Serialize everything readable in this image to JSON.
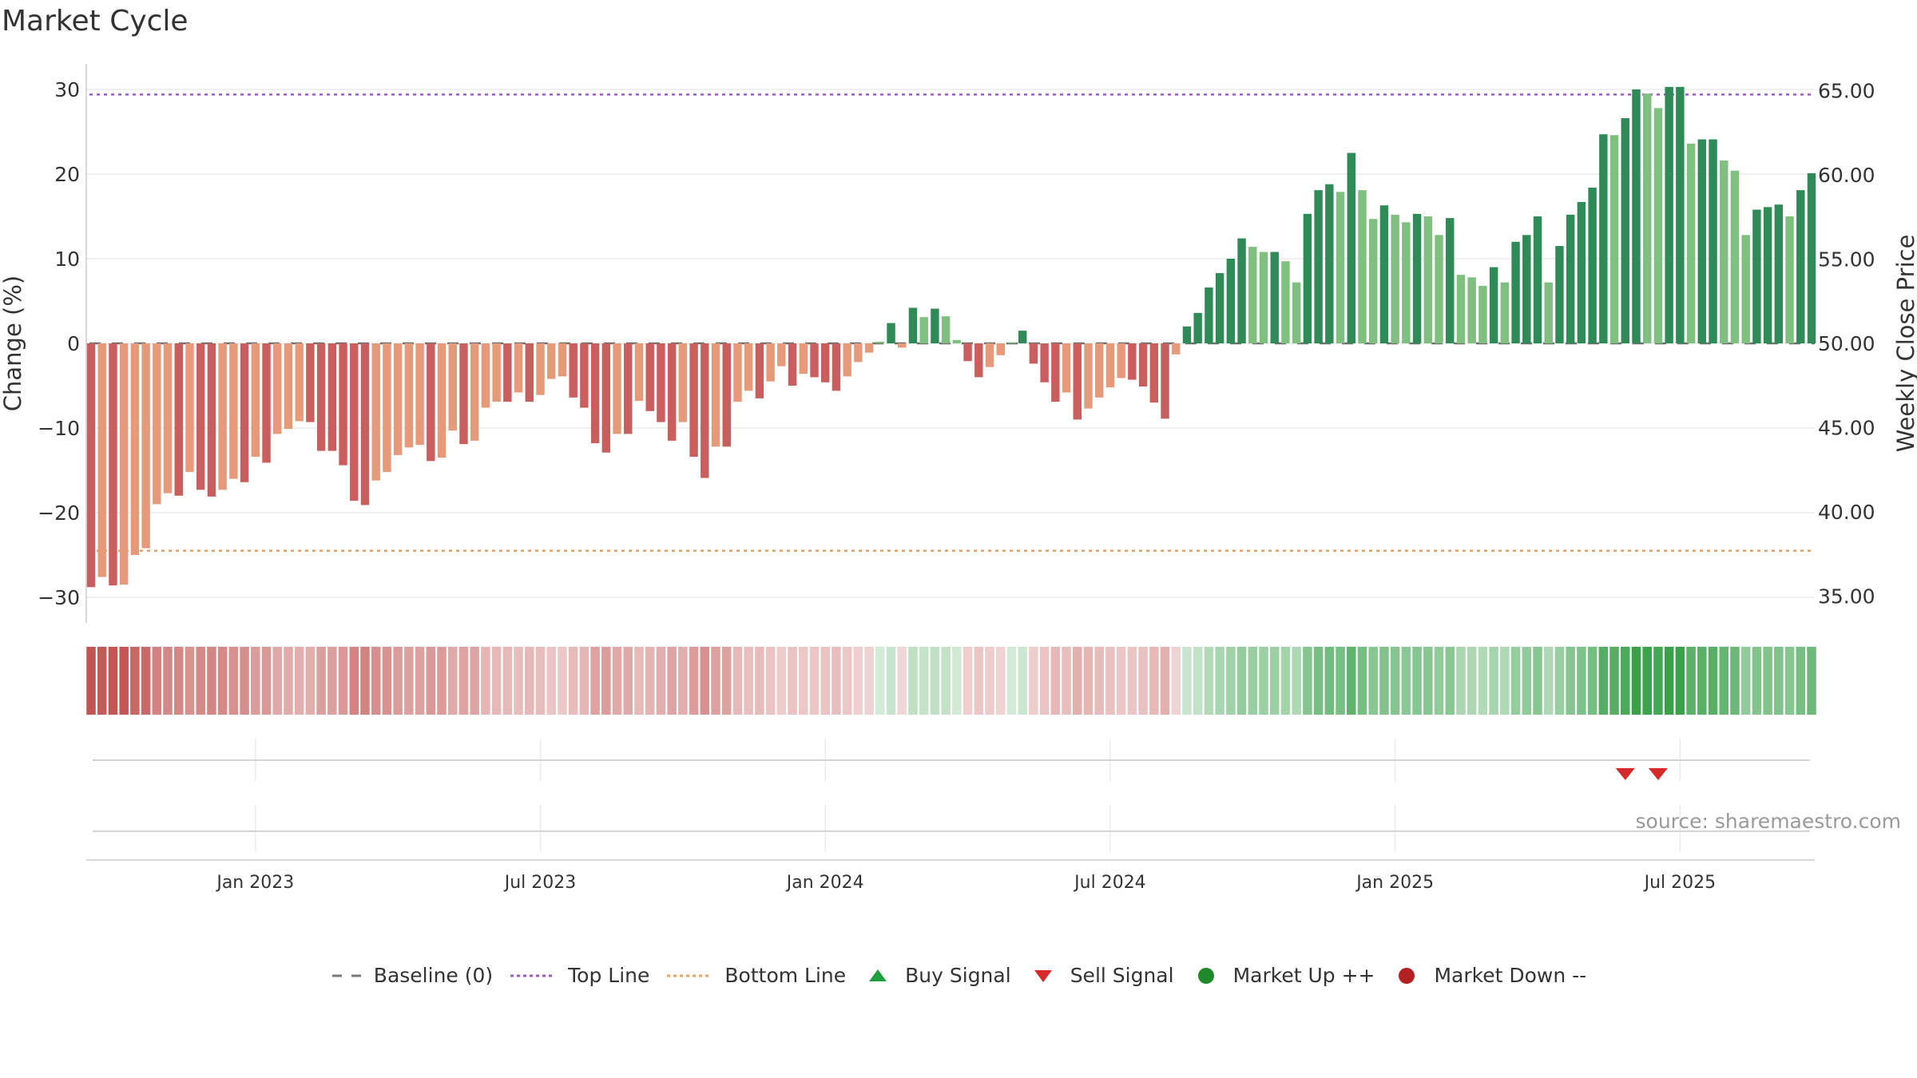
{
  "title": "Market Cycle",
  "source": "source: sharemaestro.com",
  "legend": [
    {
      "label": "Baseline (0)",
      "symbol": "dash",
      "color": "#777777"
    },
    {
      "label": "Top Line",
      "symbol": "dotted",
      "color": "#9b59d0"
    },
    {
      "label": "Bottom Line",
      "symbol": "dotted",
      "color": "#e8a060"
    },
    {
      "label": "Buy Signal",
      "symbol": "triangle-up",
      "color": "#1e9e3e"
    },
    {
      "label": "Sell Signal",
      "symbol": "triangle-down",
      "color": "#d42a2a"
    },
    {
      "label": "Market Up ++",
      "symbol": "circle",
      "color": "#1f8a2a"
    },
    {
      "label": "Market Down --",
      "symbol": "circle",
      "color": "#b22222"
    }
  ],
  "colors": {
    "neg_strong": "#c95e5e",
    "neg_light": "#e69a7a",
    "pos_strong": "#2e8b57",
    "pos_light": "#7fbf7f",
    "top_line": "#9b59d0",
    "bottom_line": "#e8a060",
    "sell_signal": "#d42a2a",
    "heat_neg": "#c0504d",
    "heat_pos": "#3aa14a"
  },
  "chart_data": {
    "type": "bar",
    "ylabel": "Change (%)",
    "y2label": "Weekly Close Price",
    "ylim": [
      -33,
      33
    ],
    "y_ticks": [
      30,
      20,
      10,
      0,
      -10,
      -20,
      -30
    ],
    "y_tick_labels": [
      "30",
      "20",
      "10",
      "0",
      "−10",
      "−20",
      "−30"
    ],
    "y2lim": [
      32.6,
      67.4
    ],
    "y2_ticks": [
      65,
      60,
      55,
      50,
      45,
      40,
      35
    ],
    "y2_tick_labels": [
      "65.00",
      "60.00",
      "55.00",
      "50.00",
      "45.00",
      "40.00",
      "35.00"
    ],
    "x_tick_labels": [
      "Jan 2023",
      "Jul 2023",
      "Jan 2024",
      "Jul 2024",
      "Jan 2025",
      "Jul 2025"
    ],
    "x_tick_bar_index": [
      15,
      41,
      67,
      93,
      119,
      145
    ],
    "top_line": 29.4,
    "bottom_line": -24.5,
    "baseline": 0,
    "grid": true,
    "values": [
      -28.8,
      -27.6,
      -28.6,
      -28.5,
      -25.0,
      -24.2,
      -19.0,
      -17.7,
      -18.0,
      -15.2,
      -17.3,
      -18.1,
      -17.3,
      -16.0,
      -16.4,
      -13.4,
      -14.1,
      -10.7,
      -10.1,
      -9.2,
      -9.3,
      -12.7,
      -12.7,
      -14.4,
      -18.6,
      -19.1,
      -16.2,
      -15.2,
      -13.2,
      -12.3,
      -12.0,
      -13.9,
      -13.5,
      -10.3,
      -11.9,
      -11.5,
      -7.6,
      -6.9,
      -6.9,
      -5.8,
      -6.9,
      -6.1,
      -4.2,
      -3.9,
      -6.4,
      -7.6,
      -11.8,
      -12.9,
      -10.7,
      -10.7,
      -6.8,
      -8.0,
      -9.3,
      -11.5,
      -9.3,
      -13.4,
      -15.9,
      -12.2,
      -12.2,
      -6.9,
      -5.6,
      -6.5,
      -4.5,
      -2.7,
      -5.0,
      -3.6,
      -4.0,
      -4.6,
      -5.6,
      -3.9,
      -2.2,
      -1.1,
      0.2,
      2.4,
      -0.5,
      4.2,
      3.1,
      4.1,
      3.2,
      0.4,
      -2.1,
      -4.0,
      -2.8,
      -1.4,
      0.1,
      1.5,
      -2.4,
      -4.6,
      -6.9,
      -5.8,
      -9.0,
      -7.7,
      -6.4,
      -5.2,
      -4.1,
      -4.3,
      -5.1,
      -7.0,
      -8.9,
      -1.3,
      2.0,
      3.6,
      6.6,
      8.3,
      10.0,
      12.4,
      11.4,
      10.8,
      10.8,
      9.7,
      7.2,
      15.3,
      18.1,
      18.8,
      17.9,
      22.5,
      18.1,
      14.7,
      16.3,
      15.2,
      14.3,
      15.3,
      15.0,
      12.8,
      14.8,
      8.1,
      7.8,
      6.8,
      9.0,
      7.2,
      12.0,
      12.8,
      15.0,
      7.2,
      11.5,
      15.2,
      16.7,
      18.4,
      24.7,
      24.6,
      26.6,
      30.0,
      29.5,
      27.8,
      30.3,
      30.3,
      23.6,
      24.1,
      24.1,
      21.6,
      20.4,
      12.8,
      15.8,
      16.1,
      16.4,
      15.0,
      18.1,
      20.1
    ],
    "sell_signals_bar_index": [
      140,
      143
    ]
  }
}
